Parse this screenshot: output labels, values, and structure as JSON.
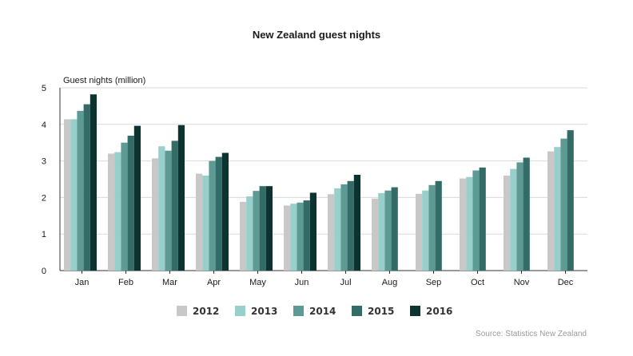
{
  "chart_data": {
    "type": "bar",
    "title": "New Zealand guest nights",
    "ylabel": "Guest nights (million)",
    "xlabel": "",
    "ylim": [
      0,
      5
    ],
    "yticks": [
      0,
      1,
      2,
      3,
      4,
      5
    ],
    "grid": true,
    "legend": "bottom",
    "categories": [
      "Jan",
      "Feb",
      "Mar",
      "Apr",
      "May",
      "Jun",
      "Jul",
      "Aug",
      "Sep",
      "Oct",
      "Nov",
      "Dec"
    ],
    "series": [
      {
        "name": "2012",
        "color": "#c8c8c8",
        "values": [
          4.14,
          3.2,
          3.07,
          2.65,
          1.88,
          1.78,
          2.09,
          1.97,
          2.1,
          2.52,
          2.6,
          3.26
        ]
      },
      {
        "name": "2013",
        "color": "#99cfcb",
        "values": [
          4.14,
          3.24,
          3.4,
          2.6,
          2.03,
          1.83,
          2.25,
          2.12,
          2.19,
          2.56,
          2.78,
          3.38
        ]
      },
      {
        "name": "2014",
        "color": "#5e9a94",
        "values": [
          4.37,
          3.5,
          3.28,
          3.0,
          2.18,
          1.86,
          2.36,
          2.19,
          2.34,
          2.74,
          2.96,
          3.61
        ]
      },
      {
        "name": "2015",
        "color": "#336b66",
        "values": [
          4.55,
          3.69,
          3.55,
          3.11,
          2.31,
          1.92,
          2.45,
          2.28,
          2.45,
          2.82,
          3.09,
          3.84
        ]
      },
      {
        "name": "2016",
        "color": "#0c3330",
        "values": [
          4.82,
          3.96,
          3.98,
          3.22,
          2.31,
          2.13,
          2.62,
          null,
          null,
          null,
          null,
          null
        ]
      }
    ],
    "source": "Source: Statistics New Zealand"
  }
}
